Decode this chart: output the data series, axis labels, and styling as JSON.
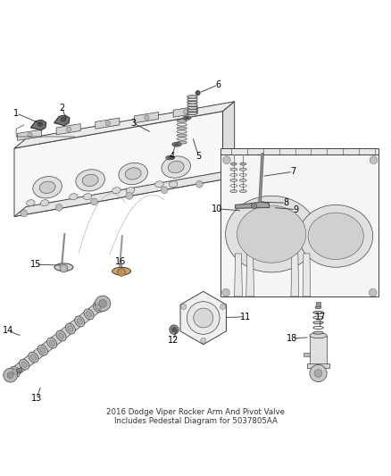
{
  "background_color": "#ffffff",
  "line_color": "#404040",
  "label_color": "#000000",
  "figsize": [
    4.38,
    5.33
  ],
  "dpi": 100,
  "callouts": {
    "1": {
      "part": [
        0.115,
        0.785
      ],
      "label": [
        0.04,
        0.82
      ]
    },
    "2": {
      "part": [
        0.175,
        0.8
      ],
      "label": [
        0.145,
        0.83
      ]
    },
    "3a": {
      "part": [
        0.39,
        0.77
      ],
      "label": [
        0.34,
        0.795
      ]
    },
    "3b": {
      "part": [
        0.435,
        0.71
      ],
      "label": [
        0.37,
        0.695
      ]
    },
    "4": {
      "part": [
        0.448,
        0.745
      ],
      "label": [
        0.445,
        0.712
      ]
    },
    "5": {
      "part": [
        0.49,
        0.76
      ],
      "label": [
        0.505,
        0.715
      ]
    },
    "6": {
      "part": [
        0.51,
        0.87
      ],
      "label": [
        0.56,
        0.89
      ]
    },
    "7": {
      "part": [
        0.68,
        0.66
      ],
      "label": [
        0.745,
        0.668
      ]
    },
    "8": {
      "part": [
        0.672,
        0.59
      ],
      "label": [
        0.73,
        0.59
      ]
    },
    "9": {
      "part": [
        0.7,
        0.575
      ],
      "label": [
        0.755,
        0.572
      ]
    },
    "10": {
      "part": [
        0.622,
        0.568
      ],
      "label": [
        0.56,
        0.572
      ]
    },
    "11": {
      "part": [
        0.57,
        0.295
      ],
      "label": [
        0.625,
        0.3
      ]
    },
    "12": {
      "part": [
        0.455,
        0.27
      ],
      "label": [
        0.445,
        0.238
      ]
    },
    "13": {
      "part": [
        0.1,
        0.12
      ],
      "label": [
        0.095,
        0.088
      ]
    },
    "14": {
      "part": [
        0.058,
        0.245
      ],
      "label": [
        0.022,
        0.268
      ]
    },
    "15": {
      "part": [
        0.163,
        0.425
      ],
      "label": [
        0.095,
        0.432
      ]
    },
    "16": {
      "part": [
        0.32,
        0.418
      ],
      "label": [
        0.32,
        0.438
      ]
    },
    "17": {
      "part": [
        0.815,
        0.27
      ],
      "label": [
        0.82,
        0.295
      ]
    },
    "18": {
      "part": [
        0.79,
        0.24
      ],
      "label": [
        0.748,
        0.242
      ]
    }
  }
}
